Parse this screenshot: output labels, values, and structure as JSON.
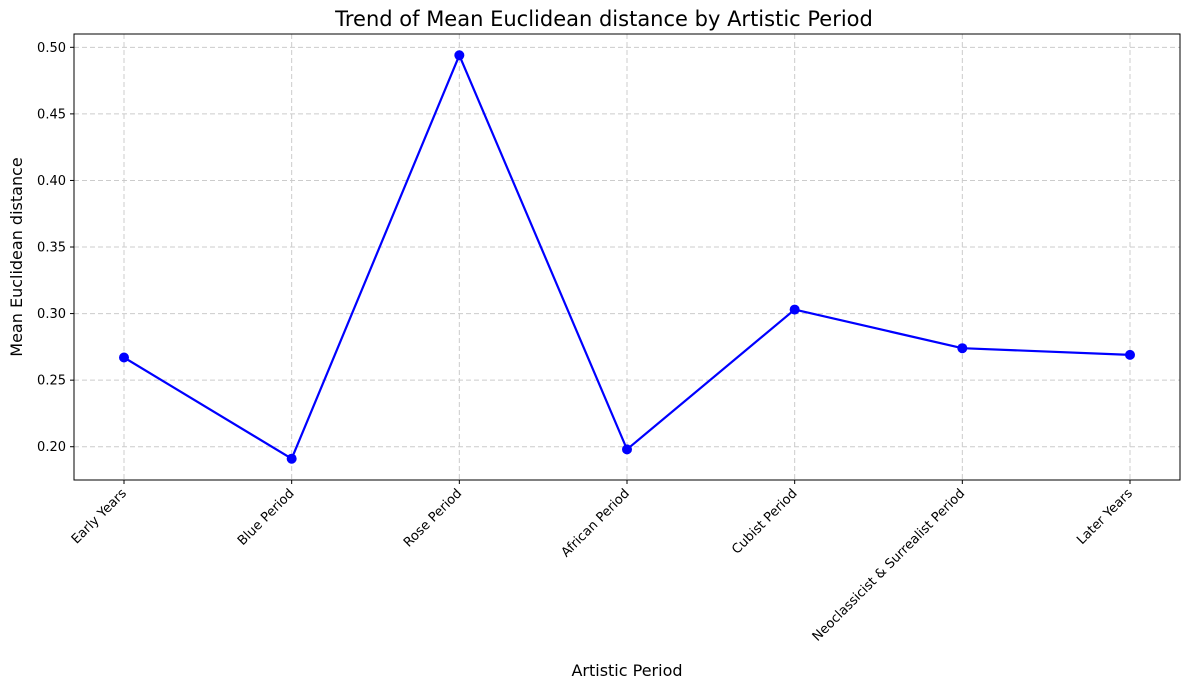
{
  "chart_data": {
    "type": "line",
    "title": "Trend of Mean Euclidean distance by Artistic Period",
    "xlabel": "Artistic Period",
    "ylabel": "Mean Euclidean distance",
    "categories": [
      "Early Years",
      "Blue Period",
      "Rose Period",
      "African Period",
      "Cubist Period",
      "Neoclassicist & Surrealist Period",
      "Later Years"
    ],
    "series": [
      {
        "values": [
          0.267,
          0.191,
          0.494,
          0.198,
          0.303,
          0.274,
          0.269
        ]
      }
    ],
    "yticks": [
      "0.20",
      "0.25",
      "0.30",
      "0.35",
      "0.40",
      "0.45",
      "0.50"
    ],
    "ylim": [
      0.175,
      0.51
    ],
    "grid": true,
    "line_color": "#0000ff",
    "marker": "circle"
  }
}
